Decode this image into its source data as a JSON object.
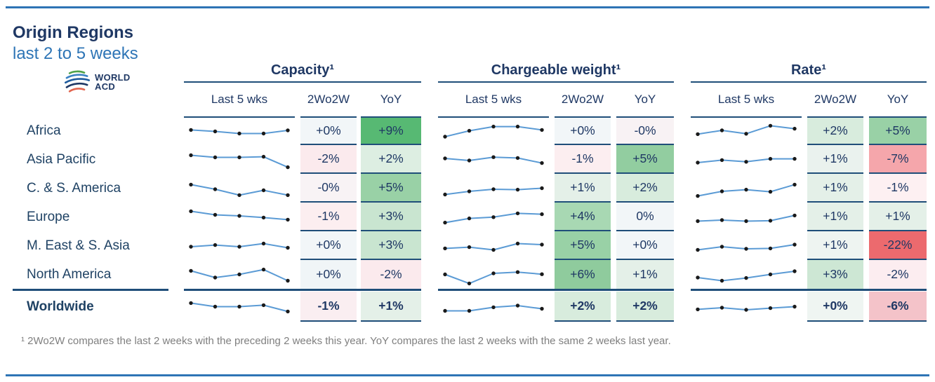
{
  "header": {
    "title": "Origin Regions",
    "subtitle": "last 2 to 5 weeks",
    "logo": {
      "line1": "WORLD",
      "line2": "ACD"
    }
  },
  "footnote": "¹ 2Wo2W compares the last 2 weeks with the preceding 2 weeks this year. YoY compares the last 2 weeks with the same 2 weeks last year.",
  "colors": {
    "accent_rule": "#2E74B5",
    "navy_text": "#1F3864",
    "border_navy": "#1F4E79",
    "spark_line": "#5B9BD5",
    "spark_dot": "#1a1a1a",
    "footnote_gray": "#7f7f7f",
    "strong_green": "#57b973",
    "strong_red": "#ec6a6e"
  },
  "chart_data": {
    "type": "table",
    "title": "Origin Regions — last 2 to 5 weeks",
    "metrics": [
      "Capacity¹",
      "Chargeable weight¹",
      "Rate¹"
    ],
    "sub_columns": [
      "Last 5 wks",
      "2Wo2W",
      "YoY"
    ],
    "sparkline_note": "5 weekly values per region/metric, normalized 0-100, estimated from sparkline pixels",
    "rows": [
      {
        "region": "Africa",
        "bold": false,
        "capacity": {
          "spark": [
            62,
            55,
            45,
            45,
            60
          ],
          "w2o2w": "+0%",
          "w2o2w_bg": "#f2f6f8",
          "yoy": "+9%",
          "yoy_bg": "#57b973"
        },
        "chargeable_weight": {
          "spark": [
            30,
            58,
            78,
            78,
            62
          ],
          "w2o2w": "+0%",
          "w2o2w_bg": "#f2f6f8",
          "yoy": "-0%",
          "yoy_bg": "#f8f2f4"
        },
        "rate": {
          "spark": [
            42,
            60,
            44,
            82,
            68
          ],
          "w2o2w": "+2%",
          "w2o2w_bg": "#d8ecdd",
          "yoy": "+5%",
          "yoy_bg": "#99d1a6"
        }
      },
      {
        "region": "Asia Pacific",
        "bold": false,
        "capacity": {
          "spark": [
            75,
            65,
            65,
            68,
            18
          ],
          "w2o2w": "-2%",
          "w2o2w_bg": "#fbeaed",
          "yoy": "+2%",
          "yoy_bg": "#ddeee2"
        },
        "chargeable_weight": {
          "spark": [
            60,
            50,
            66,
            62,
            38
          ],
          "w2o2w": "-1%",
          "w2o2w_bg": "#fceef0",
          "yoy": "+5%",
          "yoy_bg": "#92cda0"
        },
        "rate": {
          "spark": [
            40,
            52,
            44,
            58,
            58
          ],
          "w2o2w": "+1%",
          "w2o2w_bg": "#eaf2ee",
          "yoy": "-7%",
          "yoy_bg": "#f5a6ab"
        }
      },
      {
        "region": "C. & S. America",
        "bold": false,
        "capacity": {
          "spark": [
            72,
            50,
            22,
            45,
            22
          ],
          "w2o2w": "-0%",
          "w2o2w_bg": "#f8f3f5",
          "yoy": "+5%",
          "yoy_bg": "#99d1a6"
        },
        "chargeable_weight": {
          "spark": [
            25,
            40,
            50,
            48,
            55
          ],
          "w2o2w": "+1%",
          "w2o2w_bg": "#e4f0e8",
          "yoy": "+2%",
          "yoy_bg": "#d8ecdd"
        },
        "rate": {
          "spark": [
            18,
            40,
            48,
            38,
            72
          ],
          "w2o2w": "+1%",
          "w2o2w_bg": "#e4f0e8",
          "yoy": "-1%",
          "yoy_bg": "#fdf0f2"
        }
      },
      {
        "region": "Europe",
        "bold": false,
        "capacity": {
          "spark": [
            82,
            65,
            60,
            52,
            42
          ],
          "w2o2w": "-1%",
          "w2o2w_bg": "#fceef0",
          "yoy": "+3%",
          "yoy_bg": "#c9e5d0"
        },
        "chargeable_weight": {
          "spark": [
            28,
            48,
            54,
            72,
            68
          ],
          "w2o2w": "+4%",
          "w2o2w_bg": "#a8d8b3",
          "yoy": "0%",
          "yoy_bg": "#f2f6f8"
        },
        "rate": {
          "spark": [
            35,
            40,
            35,
            37,
            62
          ],
          "w2o2w": "+1%",
          "w2o2w_bg": "#e4f0e8",
          "yoy": "+1%",
          "yoy_bg": "#e4f0e8"
        }
      },
      {
        "region": "M. East & S. Asia",
        "bold": false,
        "capacity": {
          "spark": [
            50,
            58,
            50,
            65,
            45
          ],
          "w2o2w": "+0%",
          "w2o2w_bg": "#f2f6f8",
          "yoy": "+3%",
          "yoy_bg": "#c9e5d0"
        },
        "chargeable_weight": {
          "spark": [
            42,
            48,
            35,
            65,
            60
          ],
          "w2o2w": "+5%",
          "w2o2w_bg": "#99d1a6",
          "yoy": "+0%",
          "yoy_bg": "#f2f6f8"
        },
        "rate": {
          "spark": [
            35,
            50,
            40,
            42,
            60
          ],
          "w2o2w": "+1%",
          "w2o2w_bg": "#eef4f1",
          "yoy": "-22%",
          "yoy_bg": "#ec6a6e"
        }
      },
      {
        "region": "North America",
        "bold": false,
        "capacity": {
          "spark": [
            72,
            40,
            55,
            78,
            25
          ],
          "w2o2w": "+0%",
          "w2o2w_bg": "#f0f5f7",
          "yoy": "-2%",
          "yoy_bg": "#fbeaed"
        },
        "chargeable_weight": {
          "spark": [
            55,
            12,
            60,
            66,
            56
          ],
          "w2o2w": "+6%",
          "w2o2w_bg": "#8fcb9d",
          "yoy": "+1%",
          "yoy_bg": "#e4f0e8"
        },
        "rate": {
          "spark": [
            40,
            25,
            38,
            55,
            70
          ],
          "w2o2w": "+3%",
          "w2o2w_bg": "#cde7d4",
          "yoy": "-2%",
          "yoy_bg": "#fcedf0"
        }
      },
      {
        "region": "Worldwide",
        "bold": true,
        "capacity": {
          "spark": [
            72,
            55,
            55,
            62,
            32
          ],
          "w2o2w": "-1%",
          "w2o2w_bg": "#faeef1",
          "yoy": "+1%",
          "yoy_bg": "#e4f0e8"
        },
        "chargeable_weight": {
          "spark": [
            35,
            35,
            52,
            60,
            45
          ],
          "w2o2w": "+2%",
          "w2o2w_bg": "#d8ecdd",
          "yoy": "+2%",
          "yoy_bg": "#d8ecdd"
        },
        "rate": {
          "spark": [
            42,
            50,
            40,
            48,
            55
          ],
          "w2o2w": "+0%",
          "w2o2w_bg": "#eff5f2",
          "yoy": "-6%",
          "yoy_bg": "#f4c3c9"
        }
      }
    ]
  }
}
